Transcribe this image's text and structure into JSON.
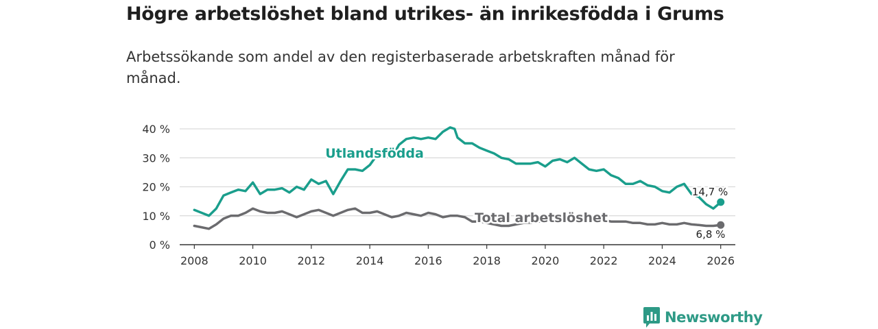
{
  "header": {
    "title": "Högre arbetslöshet bland utrikes- än inrikesfödda i Grums",
    "subtitle": "Arbetssökande som andel av den registerbaserade arbetskraften månad för månad."
  },
  "colors": {
    "foreign_born": "#1a9e8c",
    "total": "#6b6b6e",
    "grid": "#d9d9d9",
    "axis": "#333333",
    "brand": "#2e9a86"
  },
  "brand": {
    "name": "Newsworthy"
  },
  "chart_data": {
    "type": "line",
    "title": "Högre arbetslöshet bland utrikes- än inrikesfödda i Grums",
    "subtitle": "Arbetssökande som andel av den registerbaserade arbetskraften månad för månad.",
    "xlabel": "",
    "ylabel": "",
    "xlim": [
      2007.5,
      2026.5
    ],
    "ylim": [
      0,
      40
    ],
    "x_ticks": [
      2008,
      2010,
      2012,
      2014,
      2016,
      2018,
      2020,
      2022,
      2024,
      2026
    ],
    "x_tick_labels": [
      "2008",
      "2010",
      "2012",
      "2014",
      "2016",
      "2018",
      "2020",
      "2022",
      "2024",
      "2026"
    ],
    "y_ticks": [
      0,
      10,
      20,
      30,
      40
    ],
    "y_tick_labels": [
      "0 %",
      "10 %",
      "20 %",
      "30 %",
      "40 %"
    ],
    "grid": true,
    "series": [
      {
        "name": "Utlandsfödda",
        "end_label": "14,7 %",
        "x": [
          2008.0,
          2008.25,
          2008.5,
          2008.75,
          2009.0,
          2009.25,
          2009.5,
          2009.75,
          2010.0,
          2010.25,
          2010.5,
          2010.75,
          2011.0,
          2011.25,
          2011.5,
          2011.75,
          2012.0,
          2012.25,
          2012.5,
          2012.75,
          2013.0,
          2013.25,
          2013.5,
          2013.75,
          2014.0,
          2014.25,
          2014.5,
          2014.75,
          2015.0,
          2015.25,
          2015.5,
          2015.75,
          2016.0,
          2016.25,
          2016.5,
          2016.75,
          2016.9,
          2017.0,
          2017.25,
          2017.5,
          2017.75,
          2018.0,
          2018.25,
          2018.5,
          2018.75,
          2019.0,
          2019.25,
          2019.5,
          2019.75,
          2020.0,
          2020.25,
          2020.5,
          2020.75,
          2021.0,
          2021.25,
          2021.5,
          2021.75,
          2022.0,
          2022.25,
          2022.5,
          2022.75,
          2023.0,
          2023.25,
          2023.5,
          2023.75,
          2024.0,
          2024.25,
          2024.5,
          2024.75,
          2025.0,
          2025.25,
          2025.5,
          2025.75,
          2026.0
        ],
        "values": [
          12.0,
          11.0,
          10.0,
          12.5,
          17.0,
          18.0,
          19.0,
          18.5,
          21.5,
          17.5,
          19.0,
          19.0,
          19.5,
          18.0,
          20.0,
          19.0,
          22.5,
          21.0,
          22.0,
          17.5,
          22.0,
          26.0,
          26.0,
          25.5,
          27.5,
          31.0,
          30.5,
          30.0,
          34.5,
          36.5,
          37.0,
          36.5,
          37.0,
          36.5,
          39.0,
          40.5,
          40.0,
          37.0,
          35.0,
          35.0,
          33.5,
          32.5,
          31.5,
          30.0,
          29.5,
          28.0,
          28.0,
          28.0,
          28.5,
          27.0,
          29.0,
          29.5,
          28.5,
          30.0,
          28.0,
          26.0,
          25.5,
          26.0,
          24.0,
          23.0,
          21.0,
          21.0,
          22.0,
          20.5,
          20.0,
          18.5,
          18.0,
          20.0,
          21.0,
          17.5,
          16.5,
          14.0,
          12.5,
          14.7
        ]
      },
      {
        "name": "Total arbetslöshet",
        "end_label": "6,8 %",
        "x": [
          2008.0,
          2008.25,
          2008.5,
          2008.75,
          2009.0,
          2009.25,
          2009.5,
          2009.75,
          2010.0,
          2010.25,
          2010.5,
          2010.75,
          2011.0,
          2011.25,
          2011.5,
          2011.75,
          2012.0,
          2012.25,
          2012.5,
          2012.75,
          2013.0,
          2013.25,
          2013.5,
          2013.75,
          2014.0,
          2014.25,
          2014.5,
          2014.75,
          2015.0,
          2015.25,
          2015.5,
          2015.75,
          2016.0,
          2016.25,
          2016.5,
          2016.75,
          2017.0,
          2017.25,
          2017.5,
          2017.75,
          2018.0,
          2018.25,
          2018.5,
          2018.75,
          2019.0,
          2019.25,
          2019.5,
          2019.75,
          2020.0,
          2020.25,
          2020.5,
          2020.75,
          2021.0,
          2021.25,
          2021.5,
          2021.75,
          2022.0,
          2022.25,
          2022.5,
          2022.75,
          2023.0,
          2023.25,
          2023.5,
          2023.75,
          2024.0,
          2024.25,
          2024.5,
          2024.75,
          2025.0,
          2025.25,
          2025.5,
          2025.75,
          2026.0
        ],
        "values": [
          6.5,
          6.0,
          5.5,
          7.0,
          9.0,
          10.0,
          10.0,
          11.0,
          12.5,
          11.5,
          11.0,
          11.0,
          11.5,
          10.5,
          9.5,
          10.5,
          11.5,
          12.0,
          11.0,
          10.0,
          11.0,
          12.0,
          12.5,
          11.0,
          11.0,
          11.5,
          10.5,
          9.5,
          10.0,
          11.0,
          10.5,
          10.0,
          11.0,
          10.5,
          9.5,
          10.0,
          10.0,
          9.5,
          8.0,
          8.0,
          7.5,
          7.0,
          6.5,
          6.5,
          7.0,
          7.5,
          7.5,
          8.0,
          8.0,
          8.0,
          8.5,
          8.0,
          8.5,
          8.5,
          8.0,
          8.5,
          8.5,
          8.0,
          8.0,
          8.0,
          7.5,
          7.5,
          7.0,
          7.0,
          7.5,
          7.0,
          7.0,
          7.5,
          7.0,
          6.8,
          6.5,
          6.5,
          6.8
        ]
      }
    ]
  }
}
